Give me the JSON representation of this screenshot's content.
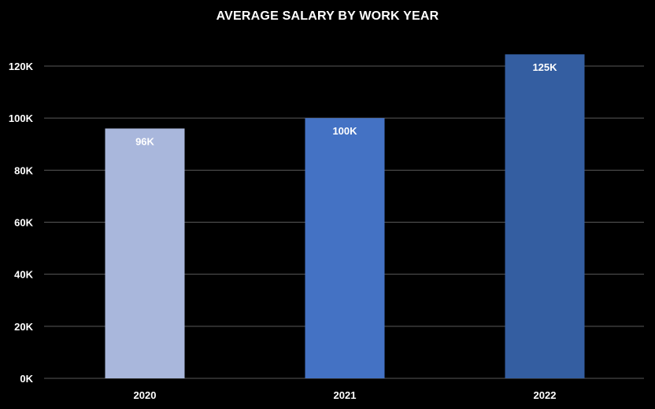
{
  "chart_data": {
    "type": "bar",
    "title": "AVERAGE SALARY BY WORK YEAR",
    "xlabel": "",
    "ylabel": "",
    "categories": [
      "2020",
      "2021",
      "2022"
    ],
    "values": [
      96000,
      100000,
      124500
    ],
    "data_labels": [
      "96K",
      "100K",
      "125K"
    ],
    "ylim": [
      0,
      120000
    ],
    "yticks": [
      0,
      20000,
      40000,
      60000,
      80000,
      100000,
      120000
    ],
    "ytick_labels": [
      "0K",
      "20K",
      "40K",
      "60K",
      "80K",
      "100K",
      "120K"
    ],
    "grid": true,
    "legend": "none",
    "bar_colors": [
      "#a9b7dc",
      "#4472c4",
      "#345ea1"
    ],
    "background_color": "#000000",
    "gridline_color": "#595959",
    "text_color": "#ffffff"
  }
}
